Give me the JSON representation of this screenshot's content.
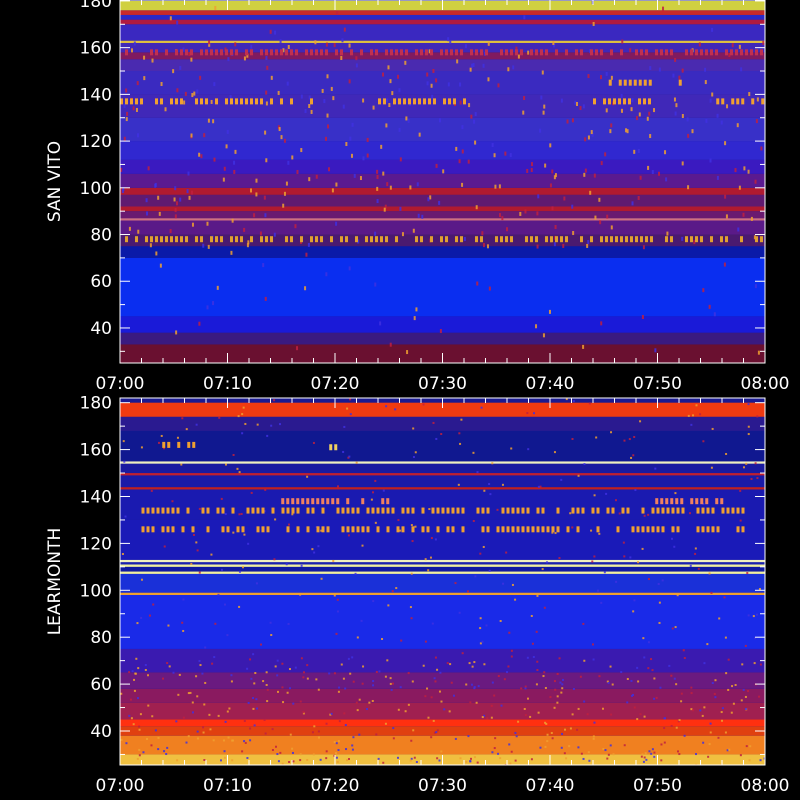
{
  "chart_data": [
    {
      "type": "heatmap",
      "name": "san-vito",
      "ylabel": "SAN VITO",
      "y_ticks": [
        40,
        60,
        80,
        100,
        120,
        140,
        160,
        180
      ],
      "y_tick_labels": [
        "40",
        "60",
        "80",
        "100",
        "120",
        "140",
        "160",
        "180"
      ],
      "ylim": [
        25,
        180
      ],
      "x_tick_labels": [
        "07:00",
        "07:10",
        "07:20",
        "07:30",
        "07:40",
        "07:50",
        "08:00"
      ],
      "xlim": [
        "07:00",
        "08:00"
      ],
      "background_color": "#000000",
      "bands": [
        {
          "from": 25,
          "to": 33,
          "color": "#6a1030"
        },
        {
          "from": 33,
          "to": 38,
          "color": "#3a1a80"
        },
        {
          "from": 38,
          "to": 45,
          "color": "#1a1ad8"
        },
        {
          "from": 45,
          "to": 70,
          "color": "#0a2ef0"
        },
        {
          "from": 70,
          "to": 75,
          "color": "#0a1aa8"
        },
        {
          "from": 75,
          "to": 80,
          "color": "#4a1a70"
        },
        {
          "from": 80,
          "to": 86,
          "color": "#5a1a88"
        },
        {
          "from": 86,
          "to": 87,
          "color": "#d07080"
        },
        {
          "from": 87,
          "to": 90,
          "color": "#6a1a70"
        },
        {
          "from": 90,
          "to": 92,
          "color": "#b01a30"
        },
        {
          "from": 92,
          "to": 97,
          "color": "#601a70"
        },
        {
          "from": 97,
          "to": 100,
          "color": "#b01a30"
        },
        {
          "from": 100,
          "to": 106,
          "color": "#5a1a90"
        },
        {
          "from": 106,
          "to": 112,
          "color": "#3a1ac0"
        },
        {
          "from": 112,
          "to": 120,
          "color": "#3028d0"
        },
        {
          "from": 120,
          "to": 130,
          "color": "#3830c8"
        },
        {
          "from": 130,
          "to": 140,
          "color": "#4028b8"
        },
        {
          "from": 140,
          "to": 150,
          "color": "#3a2ac0"
        },
        {
          "from": 150,
          "to": 155,
          "color": "#4a2ab0"
        },
        {
          "from": 155,
          "to": 158,
          "color": "#801a60"
        },
        {
          "from": 158,
          "to": 162,
          "color": "#4028b8"
        },
        {
          "from": 162,
          "to": 163,
          "color": "#e0c040"
        },
        {
          "from": 163,
          "to": 170,
          "color": "#3a28c0"
        },
        {
          "from": 170,
          "to": 172,
          "color": "#b01a40"
        },
        {
          "from": 172,
          "to": 174,
          "color": "#2a28c8"
        },
        {
          "from": 174,
          "to": 176,
          "color": "#c82a2a"
        },
        {
          "from": 176,
          "to": 180,
          "color": "#d0d040"
        }
      ],
      "bursts": [
        {
          "y": 137,
          "x0": "07:00",
          "x1": "07:18",
          "color": "#f0a030"
        },
        {
          "y": 137,
          "x0": "07:24",
          "x1": "07:32",
          "color": "#f0a030"
        },
        {
          "y": 137,
          "x0": "07:44",
          "x1": "07:50",
          "color": "#f0a030"
        },
        {
          "y": 137,
          "x0": "07:55",
          "x1": "08:00",
          "color": "#f0a030"
        },
        {
          "y": 145,
          "x0": "07:45",
          "x1": "07:52",
          "color": "#f0a030"
        },
        {
          "y": 158,
          "x0": "07:00",
          "x1": "08:00",
          "color": "#c03050"
        },
        {
          "y": 78,
          "x0": "07:00",
          "x1": "08:00",
          "color": "#e0a030"
        }
      ]
    },
    {
      "type": "heatmap",
      "name": "learmonth",
      "ylabel": "LEARMONTH",
      "y_ticks": [
        40,
        60,
        80,
        100,
        120,
        140,
        160,
        180
      ],
      "y_tick_labels": [
        "40",
        "60",
        "80",
        "100",
        "120",
        "140",
        "160",
        "180"
      ],
      "ylim": [
        25,
        180
      ],
      "x_tick_labels": [
        "07:00",
        "07:10",
        "07:20",
        "07:30",
        "07:40",
        "07:50",
        "08:00"
      ],
      "xlim": [
        "07:00",
        "08:00"
      ],
      "bands": [
        {
          "from": 25,
          "to": 30,
          "color": "#f0c040"
        },
        {
          "from": 30,
          "to": 38,
          "color": "#f08020"
        },
        {
          "from": 38,
          "to": 42,
          "color": "#e04010"
        },
        {
          "from": 42,
          "to": 45,
          "color": "#ff3010"
        },
        {
          "from": 45,
          "to": 52,
          "color": "#a02050"
        },
        {
          "from": 52,
          "to": 58,
          "color": "#8a1a60"
        },
        {
          "from": 58,
          "to": 65,
          "color": "#6a1a80"
        },
        {
          "from": 65,
          "to": 75,
          "color": "#3a1ab0"
        },
        {
          "from": 75,
          "to": 98,
          "color": "#1a2ae8"
        },
        {
          "from": 98,
          "to": 99,
          "color": "#f0a030"
        },
        {
          "from": 99,
          "to": 107,
          "color": "#1a30d8"
        },
        {
          "from": 107,
          "to": 108,
          "color": "#f0f0a0"
        },
        {
          "from": 108,
          "to": 110,
          "color": "#101aa0"
        },
        {
          "from": 110,
          "to": 111,
          "color": "#f0f0a0"
        },
        {
          "from": 111,
          "to": 112,
          "color": "#1a20b0"
        },
        {
          "from": 112,
          "to": 113,
          "color": "#f0f0c0"
        },
        {
          "from": 113,
          "to": 130,
          "color": "#1a1ab8"
        },
        {
          "from": 130,
          "to": 143,
          "color": "#1a1ab0"
        },
        {
          "from": 143,
          "to": 144,
          "color": "#c02020"
        },
        {
          "from": 144,
          "to": 149,
          "color": "#1a1aa8"
        },
        {
          "from": 149,
          "to": 150,
          "color": "#c02030"
        },
        {
          "from": 150,
          "to": 154,
          "color": "#1a1aa0"
        },
        {
          "from": 154,
          "to": 155,
          "color": "#f0f0c0"
        },
        {
          "from": 155,
          "to": 168,
          "color": "#101890"
        },
        {
          "from": 168,
          "to": 174,
          "color": "#2a1a90"
        },
        {
          "from": 174,
          "to": 180,
          "color": "#f03a10"
        }
      ],
      "bursts": [
        {
          "y": 138,
          "x0": "07:15",
          "x1": "07:25",
          "color": "#f08060"
        },
        {
          "y": 138,
          "x0": "07:47",
          "x1": "07:56",
          "color": "#f08060"
        },
        {
          "y": 134,
          "x0": "07:02",
          "x1": "07:58",
          "color": "#f0a030"
        },
        {
          "y": 126,
          "x0": "07:02",
          "x1": "07:58",
          "color": "#f0a030"
        },
        {
          "y": 162,
          "x0": "07:03",
          "x1": "07:07",
          "color": "#f0a030"
        },
        {
          "y": 161,
          "x0": "07:19",
          "x1": "07:20",
          "color": "#f0d060"
        }
      ]
    }
  ]
}
